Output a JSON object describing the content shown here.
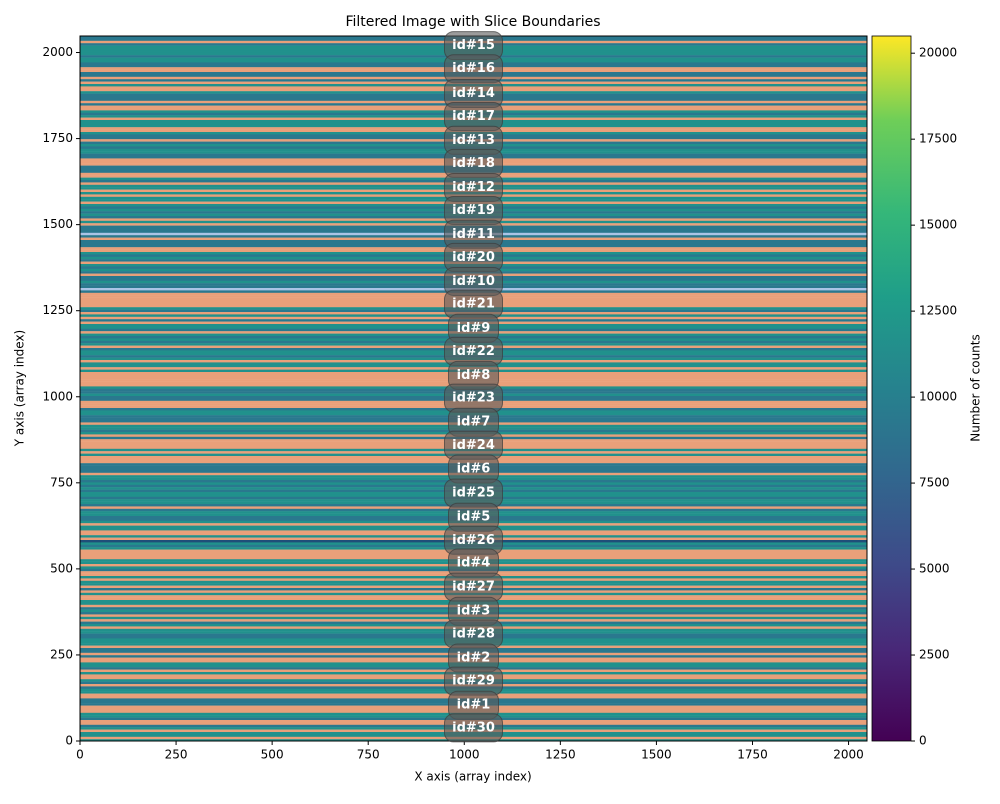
{
  "chart_data": {
    "type": "image",
    "title": "Filtered Image with Slice Boundaries",
    "x_label": "X axis (array index)",
    "y_label": "Y axis (array index)",
    "xlim": [
      0,
      2048
    ],
    "ylim": [
      0,
      2048
    ],
    "xticks": [
      0,
      250,
      500,
      750,
      1000,
      1250,
      1500,
      1750,
      2000
    ],
    "yticks": [
      0,
      250,
      500,
      750,
      1000,
      1250,
      1500,
      1750,
      2000
    ],
    "colorbar": {
      "label": "Number of counts",
      "clim": [
        0,
        20500
      ],
      "ticks": [
        0,
        2500,
        5000,
        7500,
        10000,
        12500,
        15000,
        17500,
        20000
      ],
      "colormap": "viridis"
    },
    "annotations": [
      {
        "text": "id#15",
        "x": 1024,
        "y": 2020
      },
      {
        "text": "id#16",
        "x": 1024,
        "y": 1953
      },
      {
        "text": "id#14",
        "x": 1024,
        "y": 1881
      },
      {
        "text": "id#17",
        "x": 1024,
        "y": 1814
      },
      {
        "text": "id#13",
        "x": 1024,
        "y": 1745
      },
      {
        "text": "id#18",
        "x": 1024,
        "y": 1678
      },
      {
        "text": "id#12",
        "x": 1024,
        "y": 1608
      },
      {
        "text": "id#19",
        "x": 1024,
        "y": 1541
      },
      {
        "text": "id#11",
        "x": 1024,
        "y": 1472
      },
      {
        "text": "id#20",
        "x": 1024,
        "y": 1405
      },
      {
        "text": "id#10",
        "x": 1024,
        "y": 1335
      },
      {
        "text": "id#21",
        "x": 1024,
        "y": 1269
      },
      {
        "text": "id#9",
        "x": 1024,
        "y": 1199
      },
      {
        "text": "id#22",
        "x": 1024,
        "y": 1132
      },
      {
        "text": "id#8",
        "x": 1024,
        "y": 1062
      },
      {
        "text": "id#23",
        "x": 1024,
        "y": 996
      },
      {
        "text": "id#7",
        "x": 1024,
        "y": 926
      },
      {
        "text": "id#24",
        "x": 1024,
        "y": 859
      },
      {
        "text": "id#6",
        "x": 1024,
        "y": 790
      },
      {
        "text": "id#25",
        "x": 1024,
        "y": 720
      },
      {
        "text": "id#5",
        "x": 1024,
        "y": 650
      },
      {
        "text": "id#26",
        "x": 1024,
        "y": 583
      },
      {
        "text": "id#4",
        "x": 1024,
        "y": 517
      },
      {
        "text": "id#27",
        "x": 1024,
        "y": 447
      },
      {
        "text": "id#3",
        "x": 1024,
        "y": 377
      },
      {
        "text": "id#28",
        "x": 1024,
        "y": 311
      },
      {
        "text": "id#2",
        "x": 1024,
        "y": 241
      },
      {
        "text": "id#29",
        "x": 1024,
        "y": 174
      },
      {
        "text": "id#1",
        "x": 1024,
        "y": 104
      },
      {
        "text": "id#30",
        "x": 1024,
        "y": 38
      }
    ]
  }
}
